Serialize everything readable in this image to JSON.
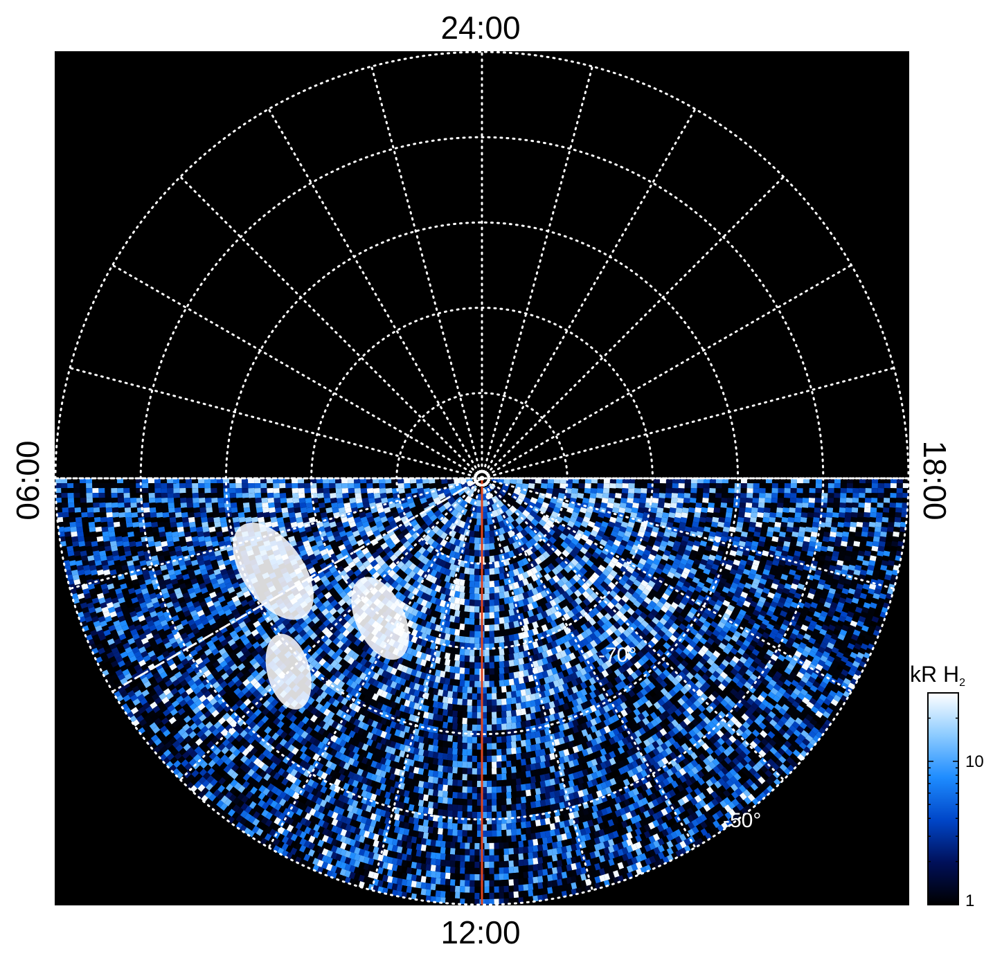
{
  "chart_data": {
    "type": "heatmap",
    "projection": "polar",
    "local_time_labels": {
      "top": "24:00",
      "left": "06:00",
      "right": "18:00",
      "bottom": "12:00"
    },
    "latitude_labels": [
      "-70°",
      "-50°"
    ],
    "latitude_circles_deg": [
      -80,
      -70,
      -60,
      -50,
      -40
    ],
    "local_time_gridlines_hours": [
      0,
      1,
      2,
      3,
      4,
      5,
      6,
      7,
      8,
      9,
      10,
      11,
      12,
      13,
      14,
      15,
      16,
      17,
      18,
      19,
      20,
      21,
      22,
      23
    ],
    "grid": true,
    "colorbar": {
      "label": "kR H",
      "label_subscript": "2",
      "scale": "log",
      "range": [
        1,
        30
      ],
      "tick_labels": [
        "1",
        "10"
      ],
      "tick_values": [
        1,
        10
      ],
      "colors": [
        "#000000",
        "#00105a",
        "#0046c8",
        "#1e8cff",
        "#8ccbff",
        "#ffffff"
      ],
      "placement": "right"
    },
    "coverage": "dayside hemisphere (06:00 through 12:00 to 18:00)",
    "overlays": [
      {
        "kind": "line",
        "style": "solid",
        "color": "#e0451e",
        "from_local_time": "pole",
        "to_local_time": "12:00"
      },
      {
        "kind": "line",
        "style": "dashed",
        "color": "#ffffff",
        "local_time_hours": 8
      }
    ],
    "colors": {
      "background": "#000000",
      "grid": "#ffffff"
    }
  }
}
